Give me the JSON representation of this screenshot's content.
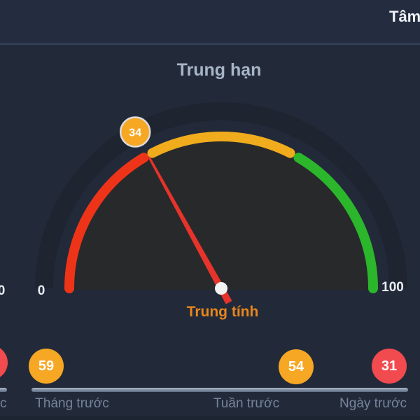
{
  "header": {
    "clipped_title": "Tâm"
  },
  "gauge": {
    "title": "Trung hạn",
    "value": 34,
    "status_label": "Trung tính",
    "scale": {
      "min_label": "0",
      "max_label": "100",
      "left_clipped_digit": "0"
    },
    "zones": [
      {
        "name": "red",
        "from": 0,
        "to": 33,
        "color": "#EE3418"
      },
      {
        "name": "yellow",
        "from": 35,
        "to": 65,
        "color": "#F0AC1D"
      },
      {
        "name": "green",
        "from": 67,
        "to": 100,
        "color": "#2BB62C"
      }
    ],
    "badge_color": "#F6A723",
    "badge_border_color": "#DCDCDC",
    "needle_color": "#E6332B",
    "pivot_color": "#F3F3F3"
  },
  "history": {
    "items": [
      {
        "label": "Tháng trước",
        "value": 59,
        "color": "#F6A723"
      },
      {
        "label": "Tuần trước",
        "value": 54,
        "color": "#F6A723"
      },
      {
        "label": "Ngày trước",
        "value": 31,
        "color": "#F14A4F"
      }
    ],
    "left_clipped": {
      "label_fragment": "c",
      "circle_color": "#F14A4F"
    }
  },
  "colors": {
    "background": "#222A3A",
    "topbar": "#242D3F",
    "divider": "#36425A",
    "gauge_interior": "#27292B",
    "gauge_outer_ring": "#1E2430",
    "title_text": "#A7B5C6",
    "status_text": "#E8861C",
    "history_label_text": "#76849B",
    "scale_text": "#E9EDF3"
  },
  "chart_data": {
    "type": "gauge",
    "title": "Trung hạn",
    "value": 34,
    "value_label": "Trung tính",
    "range": [
      0,
      100
    ],
    "zones": [
      {
        "from": 0,
        "to": 33,
        "color": "#EE3418"
      },
      {
        "from": 35,
        "to": 65,
        "color": "#F0AC1D"
      },
      {
        "from": 67,
        "to": 100,
        "color": "#2BB62C"
      }
    ],
    "history": [
      {
        "label": "Tháng trước",
        "value": 59
      },
      {
        "label": "Tuần trước",
        "value": 54
      },
      {
        "label": "Ngày trước",
        "value": 31
      }
    ]
  }
}
